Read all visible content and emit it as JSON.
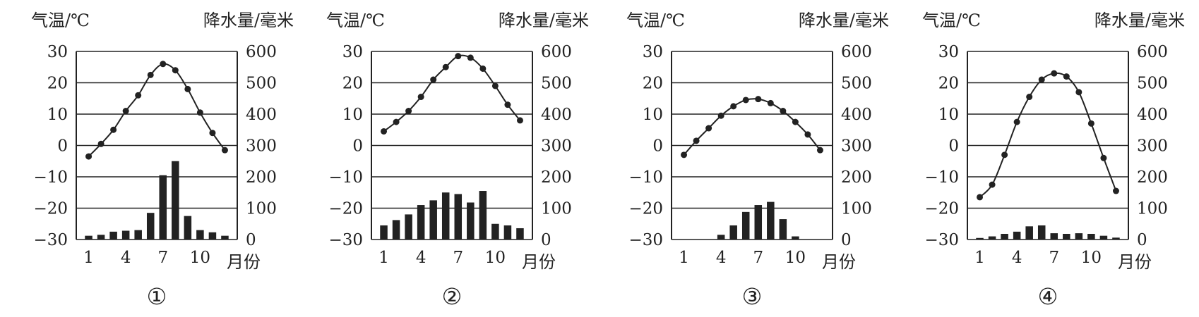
{
  "chart_data": [
    {
      "type": "bar+line",
      "caption": "①",
      "temp_label": "气温/℃",
      "precip_label": "降水量/毫米",
      "x_label": "月份",
      "x_ticks": [
        "1",
        "4",
        "7",
        "10"
      ],
      "temp_ticks": [
        "30",
        "20",
        "10",
        "0",
        "−10",
        "−20",
        "−30"
      ],
      "precip_ticks": [
        "600",
        "500",
        "400",
        "300",
        "200",
        "100",
        "0"
      ],
      "temp_range": [
        -30,
        30
      ],
      "precip_range": [
        0,
        600
      ],
      "months": [
        1,
        2,
        3,
        4,
        5,
        6,
        7,
        8,
        9,
        10,
        11,
        12
      ],
      "temperature": [
        -3.5,
        0.5,
        5,
        11,
        16,
        22.5,
        26,
        24,
        18,
        10.5,
        4,
        -1.5
      ],
      "precipitation": [
        12,
        15,
        25,
        28,
        30,
        85,
        205,
        250,
        75,
        30,
        23,
        12
      ]
    },
    {
      "type": "bar+line",
      "caption": "②",
      "temp_label": "气温/℃",
      "precip_label": "降水量/毫米",
      "x_label": "月份",
      "x_ticks": [
        "1",
        "4",
        "7",
        "10"
      ],
      "temp_ticks": [
        "30",
        "20",
        "10",
        "0",
        "−10",
        "−20",
        "−30"
      ],
      "precip_ticks": [
        "600",
        "500",
        "400",
        "300",
        "200",
        "100",
        "0"
      ],
      "temp_range": [
        -30,
        30
      ],
      "precip_range": [
        0,
        600
      ],
      "months": [
        1,
        2,
        3,
        4,
        5,
        6,
        7,
        8,
        9,
        10,
        11,
        12
      ],
      "temperature": [
        4.5,
        7.5,
        11,
        15.5,
        21,
        25,
        28.5,
        28,
        24.5,
        19,
        13,
        8
      ],
      "precipitation": [
        45,
        62,
        80,
        110,
        125,
        150,
        145,
        118,
        155,
        50,
        45,
        36
      ]
    },
    {
      "type": "bar+line",
      "caption": "③",
      "temp_label": "气温/℃",
      "precip_label": "降水量/毫米",
      "x_label": "月份",
      "x_ticks": [
        "1",
        "4",
        "7",
        "10"
      ],
      "temp_ticks": [
        "30",
        "20",
        "10",
        "0",
        "−10",
        "−20",
        "−30"
      ],
      "precip_ticks": [
        "600",
        "500",
        "400",
        "300",
        "200",
        "100",
        "0"
      ],
      "temp_range": [
        -30,
        30
      ],
      "precip_range": [
        0,
        600
      ],
      "months": [
        1,
        2,
        3,
        4,
        5,
        6,
        7,
        8,
        9,
        10,
        11,
        12
      ],
      "temperature": [
        -3,
        1.5,
        5.5,
        9.5,
        12.5,
        14.5,
        14.8,
        13.5,
        11,
        7.5,
        3.5,
        -1.5
      ],
      "precipitation": [
        0,
        0,
        0,
        15,
        45,
        88,
        110,
        120,
        65,
        10,
        0,
        0
      ]
    },
    {
      "type": "bar+line",
      "caption": "④",
      "temp_label": "气温/℃",
      "precip_label": "降水量/毫米",
      "x_label": "月份",
      "x_ticks": [
        "1",
        "4",
        "7",
        "10"
      ],
      "temp_ticks": [
        "30",
        "20",
        "10",
        "0",
        "−10",
        "−20",
        "−30"
      ],
      "precip_ticks": [
        "600",
        "500",
        "400",
        "300",
        "200",
        "100",
        "0"
      ],
      "temp_range": [
        -30,
        30
      ],
      "precip_range": [
        0,
        600
      ],
      "months": [
        1,
        2,
        3,
        4,
        5,
        6,
        7,
        8,
        9,
        10,
        11,
        12
      ],
      "temperature": [
        -16.5,
        -12.5,
        -3,
        7.5,
        15.5,
        21,
        23,
        22,
        17,
        7,
        -4,
        -14.5
      ],
      "precipitation": [
        5,
        10,
        18,
        25,
        42,
        45,
        20,
        18,
        20,
        18,
        12,
        6
      ]
    }
  ]
}
